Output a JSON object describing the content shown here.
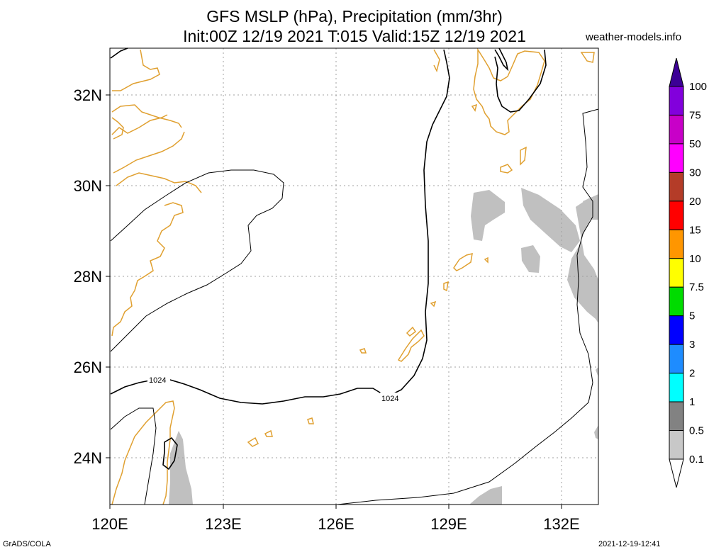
{
  "header": {
    "title_line1": "GFS MSLP (hPa), Precipitation (mm/3hr)",
    "title_line2": "Init:00Z 12/19 2021 T:015 Valid:15Z 12/19 2021",
    "site": "weather-models.info"
  },
  "footer": {
    "left": "GrADS/COLA",
    "right": "2021-12-19-12:41"
  },
  "map": {
    "lon_labels": [
      "120E",
      "123E",
      "126E",
      "129E",
      "132E"
    ],
    "lat_labels": [
      "32N",
      "30N",
      "28N",
      "26N",
      "24N"
    ],
    "isobar_labels": [
      "1024",
      "1024"
    ],
    "coast_color": "#e0a030",
    "precip_color": "#c0c0c0"
  },
  "legend": {
    "labels": [
      "100",
      "75",
      "50",
      "30",
      "20",
      "15",
      "10",
      "7.5",
      "5",
      "3",
      "2",
      "1",
      "0.5",
      "0.1"
    ],
    "colors": [
      "#8200dc",
      "#c800c8",
      "#ff00ff",
      "#b43c28",
      "#ff0000",
      "#ff9600",
      "#ffff00",
      "#00dc00",
      "#0000ff",
      "#1e8cff",
      "#00ffff",
      "#828282",
      "#c8c8c8"
    ],
    "top_color": "#3c0096"
  }
}
